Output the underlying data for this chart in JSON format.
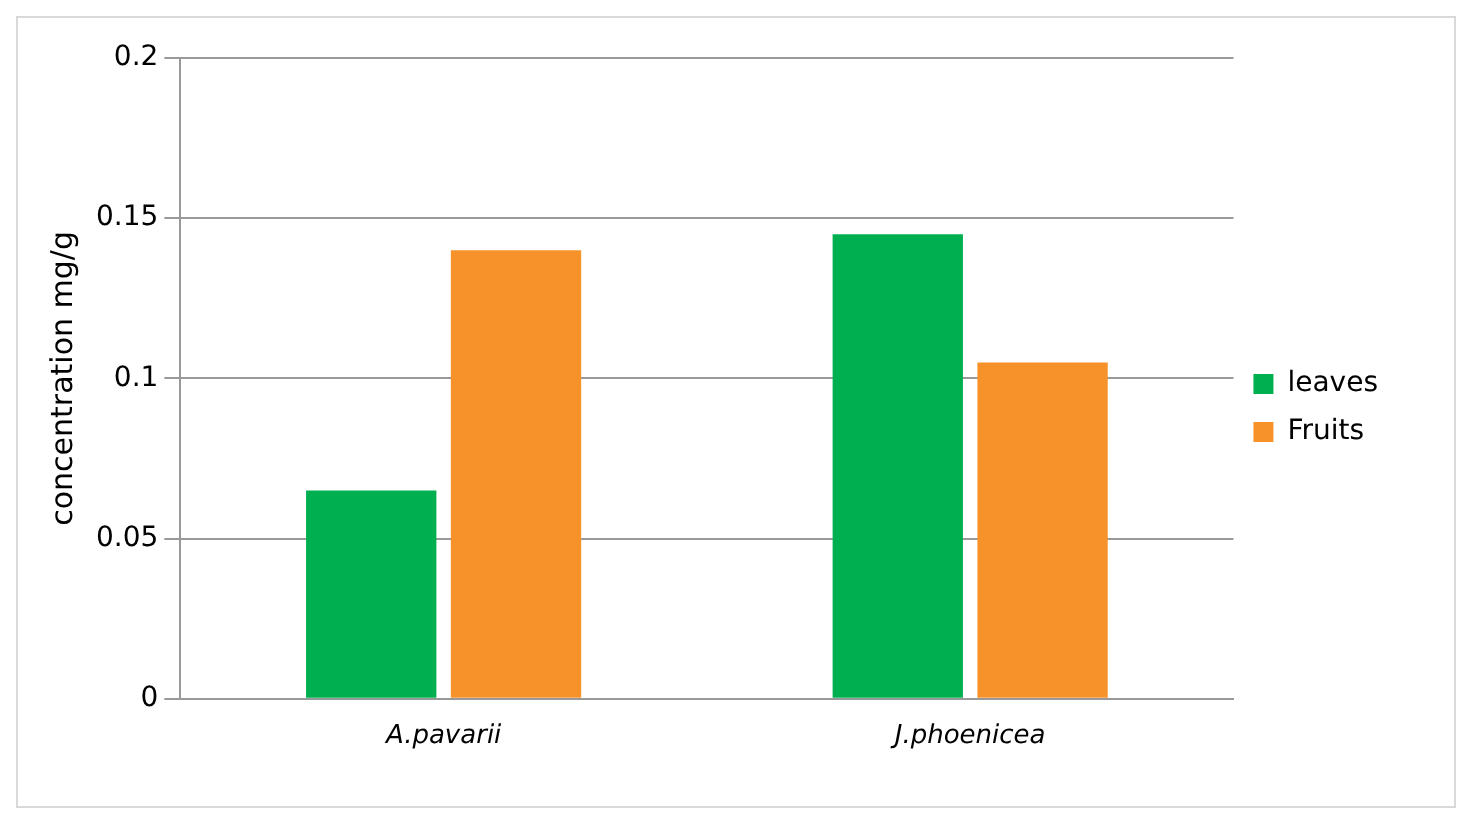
{
  "chart_data": {
    "type": "bar",
    "ylabel": "concentration mg/g",
    "categories": [
      "A.pavarii",
      "J.phoenicea"
    ],
    "series": [
      {
        "name": "leaves",
        "color": "#00b050",
        "values": [
          0.065,
          0.145
        ]
      },
      {
        "name": "Fruits",
        "color": "#f7922a",
        "values": [
          0.14,
          0.105
        ]
      }
    ],
    "ylim": [
      0,
      0.2
    ],
    "yticks": [
      0,
      0.05,
      0.1,
      0.15,
      0.2
    ],
    "grid": "y",
    "legend": "right"
  }
}
